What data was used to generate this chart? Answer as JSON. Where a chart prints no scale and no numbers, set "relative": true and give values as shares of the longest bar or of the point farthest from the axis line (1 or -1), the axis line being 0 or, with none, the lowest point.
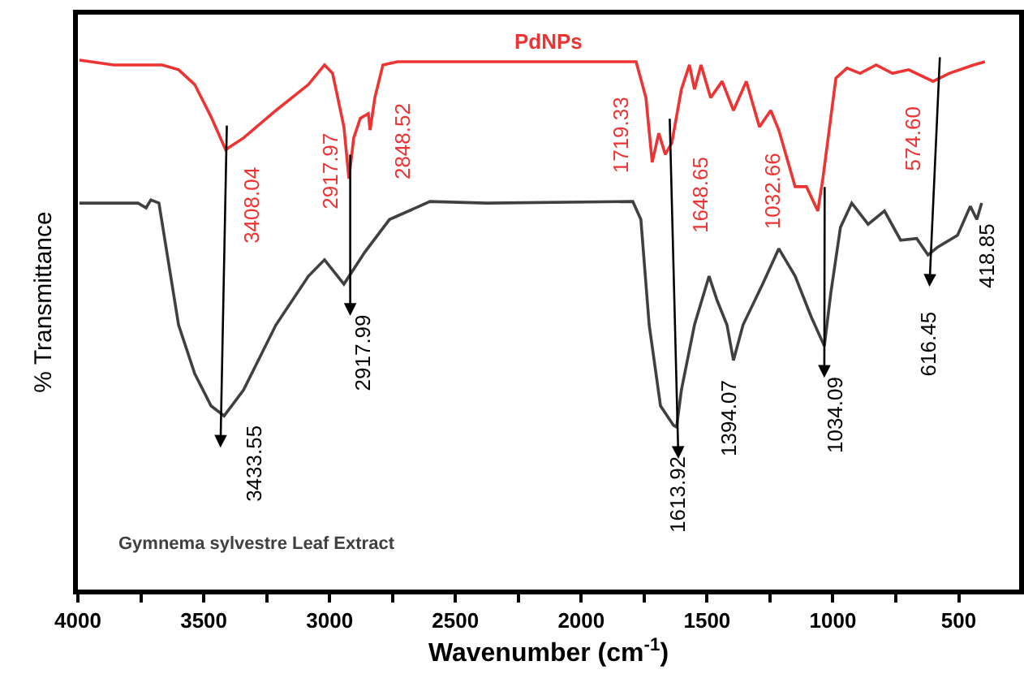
{
  "chart_data": {
    "type": "line",
    "relative": true,
    "xlabel": "Wavenumber (cm$^{-1}$)",
    "ylabel": "% Transmittance",
    "xlim": [
      4000,
      260
    ],
    "xticks": [
      4000,
      {
        "value": 3750,
        "label": null
      },
      3500,
      {
        "value": 3250,
        "label": null
      },
      3000,
      {
        "value": 2750,
        "label": null
      },
      2500,
      {
        "value": 2250,
        "label": null
      },
      2000,
      {
        "value": 1750,
        "label": null
      },
      1500,
      {
        "value": 1250,
        "label": null
      },
      1000,
      {
        "value": 750,
        "label": null
      },
      500
    ],
    "marker": "none",
    "line_style": "solid",
    "series": [
      {
        "name": "PdNPs",
        "color": "#ee3333",
        "x": [
          3994,
          3858,
          3665,
          3600,
          3536,
          3471,
          3413,
          3342,
          3213,
          3084,
          3020,
          2988,
          2943,
          2923,
          2904,
          2878,
          2846,
          2839,
          2820,
          2788,
          2730,
          1782,
          1743,
          1718,
          1692,
          1666,
          1640,
          1602,
          1570,
          1550,
          1524,
          1486,
          1440,
          1395,
          1344,
          1292,
          1247,
          1215,
          1150,
          1105,
          1060,
          1040,
          988,
          944,
          892,
          828,
          763,
          699,
          602,
          538,
          441,
          396
        ],
        "values": [
          1.0,
          0.991,
          0.991,
          0.982,
          0.954,
          0.893,
          0.831,
          0.853,
          0.905,
          0.954,
          0.991,
          0.975,
          0.874,
          0.776,
          0.853,
          0.89,
          0.899,
          0.868,
          0.929,
          0.991,
          0.997,
          0.997,
          0.929,
          0.807,
          0.862,
          0.822,
          0.844,
          0.945,
          0.991,
          0.945,
          0.991,
          0.929,
          0.96,
          0.905,
          0.96,
          0.874,
          0.905,
          0.868,
          0.761,
          0.761,
          0.715,
          0.776,
          0.966,
          0.985,
          0.975,
          0.991,
          0.975,
          0.982,
          0.96,
          0.975,
          0.991,
          0.997
        ]
      },
      {
        "name": "Gymnema sylvestre Leaf Extract",
        "color": "#404040",
        "x": [
          3994,
          3761,
          3729,
          3710,
          3678,
          3600,
          3536,
          3471,
          3419,
          3342,
          3213,
          3084,
          3020,
          2943,
          2859,
          2762,
          2601,
          2375,
          1795,
          1763,
          1730,
          1685,
          1633,
          1621,
          1602,
          1550,
          1492,
          1460,
          1421,
          1395,
          1357,
          1279,
          1215,
          1150,
          1086,
          1034,
          1008,
          970,
          925,
          860,
          795,
          731,
          667,
          622,
          583,
          505,
          454,
          428,
          409
        ],
        "values": [
          0.73,
          0.73,
          0.721,
          0.736,
          0.73,
          0.5,
          0.408,
          0.347,
          0.328,
          0.377,
          0.5,
          0.592,
          0.623,
          0.577,
          0.638,
          0.699,
          0.733,
          0.73,
          0.733,
          0.699,
          0.5,
          0.347,
          0.31,
          0.307,
          0.377,
          0.5,
          0.592,
          0.546,
          0.5,
          0.433,
          0.5,
          0.577,
          0.644,
          0.592,
          0.515,
          0.46,
          0.561,
          0.684,
          0.73,
          0.69,
          0.715,
          0.66,
          0.663,
          0.632,
          0.647,
          0.669,
          0.724,
          0.699,
          0.73
        ]
      }
    ],
    "annotations": [
      {
        "text": "3408.04",
        "x": 3408.04,
        "y": 0.831
      },
      {
        "text": "2917.97",
        "x": 2917.97,
        "y": 0.776
      },
      {
        "text": "2848.52",
        "x": 2848.52,
        "y": 0.899
      },
      {
        "text": "1719.33",
        "x": 1719.33,
        "y": 0.807
      },
      {
        "text": "1648.65",
        "x": 1648.65,
        "y": 0.844
      },
      {
        "text": "1032.66",
        "x": 1032.66,
        "y": 0.715
      },
      {
        "text": "574.60",
        "x": 574.6,
        "y": 0.96
      },
      {
        "text": "3433.55",
        "x": 3433.55,
        "y": 0.328
      },
      {
        "text": "2917.99",
        "x": 2917.99,
        "y": 0.577
      },
      {
        "text": "1613.92",
        "x": 1613.92,
        "y": 0.307
      },
      {
        "text": "1394.07",
        "x": 1394.07,
        "y": 0.433
      },
      {
        "text": "1034.09",
        "x": 1034.09,
        "y": 0.46
      },
      {
        "text": "616.45",
        "x": 616.45,
        "y": 0.632
      },
      {
        "text": "418.85",
        "x": 418.85,
        "y": 0.73
      }
    ]
  }
}
